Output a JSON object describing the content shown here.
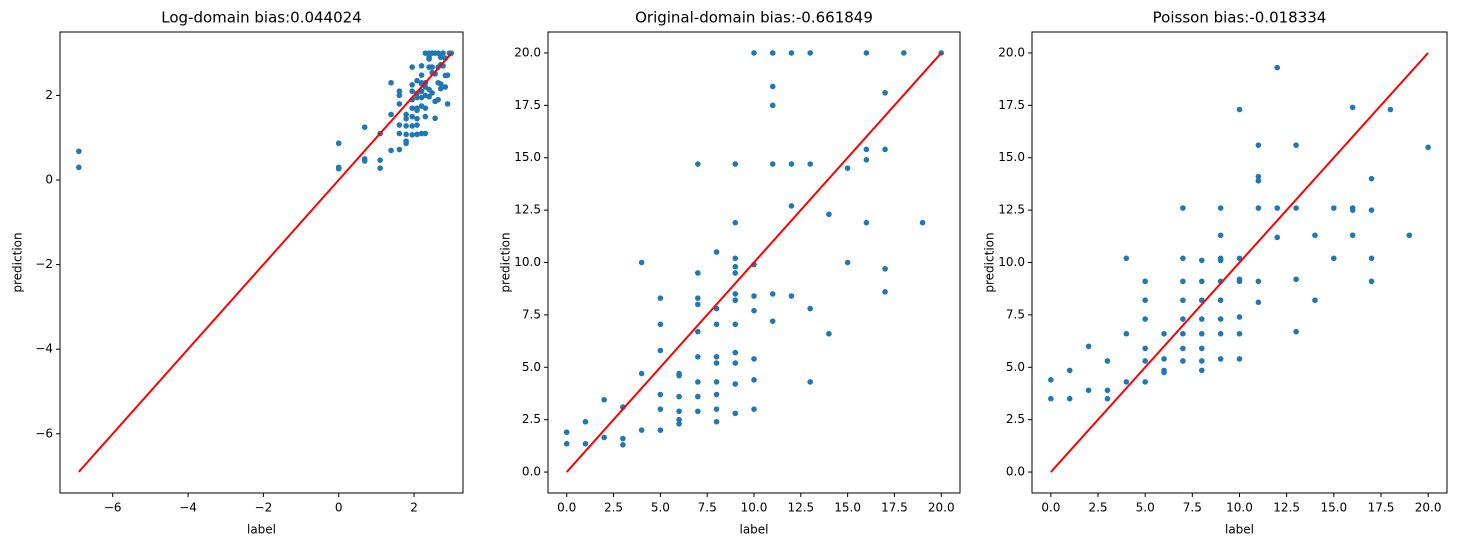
{
  "chart_data": [
    {
      "type": "scatter",
      "title": "Log-domain bias:0.044024",
      "xlabel": "label",
      "ylabel": "prediction",
      "xlim": [
        -7.4,
        3.3
      ],
      "ylim": [
        -7.4,
        3.5
      ],
      "xticks": [
        {
          "value": -6,
          "label": "−6"
        },
        {
          "value": -4,
          "label": "−4"
        },
        {
          "value": -2,
          "label": "−2"
        },
        0,
        2
      ],
      "yticks": [
        {
          "value": -6,
          "label": "−6"
        },
        {
          "value": -4,
          "label": "−4"
        },
        {
          "value": -2,
          "label": "−2"
        },
        0,
        2
      ],
      "series": [
        {
          "type": "scatter",
          "color": "#1f77b4",
          "x": [
            -6.9,
            -6.9,
            0,
            0,
            0,
            0.69,
            0.69,
            0.69,
            1.1,
            1.1,
            1.1,
            1.39,
            1.39,
            1.39,
            1.61,
            1.61,
            1.61,
            1.61,
            1.61,
            1.61,
            1.79,
            1.79,
            1.79,
            1.79,
            1.79,
            1.79,
            1.95,
            1.95,
            1.95,
            1.95,
            1.95,
            1.95,
            1.95,
            1.95,
            2.08,
            2.08,
            2.08,
            2.08,
            2.08,
            2.08,
            2.08,
            2.08,
            2.2,
            2.2,
            2.2,
            2.2,
            2.2,
            2.2,
            2.2,
            2.2,
            2.3,
            2.3,
            2.3,
            2.3,
            2.3,
            2.3,
            2.3,
            2.4,
            2.4,
            2.4,
            2.4,
            2.4,
            2.4,
            2.48,
            2.48,
            2.48,
            2.48,
            2.56,
            2.56,
            2.56,
            2.56,
            2.64,
            2.64,
            2.64,
            2.64,
            2.71,
            2.71,
            2.71,
            2.71,
            2.77,
            2.77,
            2.83,
            2.83,
            2.83,
            2.89,
            2.89,
            2.94,
            2.99
          ],
          "values": [
            0.68,
            0.3,
            0.87,
            0.3,
            0.27,
            1.25,
            0.5,
            0.45,
            1.1,
            0.47,
            0.28,
            2.3,
            1.55,
            0.7,
            2.1,
            2.0,
            1.8,
            1.3,
            1.1,
            0.72,
            1.55,
            1.45,
            1.28,
            1.08,
            0.92,
            0.87,
            2.67,
            2.25,
            2.1,
            1.9,
            1.7,
            1.5,
            1.28,
            1.07,
            2.35,
            2.05,
            1.95,
            1.7,
            1.65,
            1.45,
            1.3,
            1.08,
            2.7,
            2.48,
            2.3,
            2.28,
            2.1,
            1.95,
            1.75,
            1.1,
            3.0,
            2.3,
            2.2,
            2.0,
            1.7,
            1.5,
            1.1,
            3.0,
            2.9,
            2.86,
            2.67,
            2.14,
            1.97,
            3.0,
            2.67,
            2.54,
            2.06,
            3.0,
            2.51,
            1.86,
            1.46,
            3.0,
            2.67,
            2.3,
            1.9,
            2.9,
            2.73,
            2.27,
            2.16,
            3.0,
            2.7,
            2.88,
            2.47,
            2.2,
            2.48,
            1.8,
            3.0,
            3.0
          ]
        },
        {
          "type": "line",
          "color": "#ff0000",
          "x": [
            -6.9,
            2.996
          ],
          "values": [
            -6.9,
            2.996
          ]
        }
      ]
    },
    {
      "type": "scatter",
      "title": "Original-domain bias:-0.661849",
      "xlabel": "label",
      "ylabel": "prediction",
      "xlim": [
        -1,
        21
      ],
      "ylim": [
        -1,
        21
      ],
      "xticks": [
        {
          "value": 0,
          "label": "0.0"
        },
        2.5,
        {
          "value": 5,
          "label": "5.0"
        },
        7.5,
        {
          "value": 10,
          "label": "10.0"
        },
        12.5,
        {
          "value": 15,
          "label": "15.0"
        },
        17.5,
        {
          "value": 20,
          "label": "20.0"
        }
      ],
      "yticks": [
        {
          "value": 0,
          "label": "0.0"
        },
        2.5,
        {
          "value": 5,
          "label": "5.0"
        },
        7.5,
        {
          "value": 10,
          "label": "10.0"
        },
        12.5,
        {
          "value": 15,
          "label": "15.0"
        },
        17.5,
        {
          "value": 20,
          "label": "20.0"
        }
      ],
      "series": [
        {
          "type": "scatter",
          "color": "#1f77b4",
          "x": [
            0,
            0,
            1,
            1,
            2,
            2,
            3,
            3,
            3,
            4,
            4,
            4,
            5,
            5,
            5,
            5,
            5,
            5,
            6,
            6,
            6,
            6,
            6,
            6,
            7,
            7,
            7,
            7,
            7,
            7,
            7,
            7,
            7,
            8,
            8,
            8,
            8,
            8,
            8,
            8,
            8,
            8,
            9,
            9,
            9,
            9,
            9,
            9,
            9,
            9,
            9,
            9,
            9,
            9,
            10,
            10,
            10,
            10,
            10,
            10,
            10,
            11,
            11,
            11,
            11,
            11,
            11,
            12,
            12,
            12,
            12,
            13,
            13,
            13,
            13,
            14,
            14,
            15,
            15,
            16,
            16,
            16,
            16,
            17,
            17,
            17,
            17,
            18,
            19,
            20
          ],
          "values": [
            1.9,
            1.35,
            2.4,
            1.35,
            3.45,
            1.65,
            3.1,
            1.6,
            1.3,
            10,
            4.7,
            2,
            8.3,
            7.05,
            5.8,
            3.7,
            3,
            2,
            4.7,
            4.6,
            3.6,
            2.9,
            2.5,
            2.3,
            14.7,
            9.5,
            8.3,
            8,
            6.7,
            5.5,
            4.3,
            3.6,
            2.9,
            10.5,
            7.8,
            7.05,
            5.5,
            5.2,
            4.3,
            3.7,
            3,
            2.4,
            14.7,
            11.9,
            10.2,
            9.8,
            9.5,
            8.5,
            8.2,
            7.05,
            5.7,
            5.2,
            4.2,
            2.8,
            20,
            9.9,
            8.4,
            7.7,
            5.4,
            4.4,
            3,
            20,
            18.4,
            17.5,
            14.7,
            8.5,
            7.2,
            20,
            14.7,
            12.7,
            8.4,
            20,
            14.7,
            7.8,
            4.3,
            12.3,
            6.6,
            14.5,
            10,
            20,
            15.4,
            14.9,
            11.9,
            18.1,
            15.4,
            9.7,
            8.6,
            20,
            11.9,
            20
          ]
        },
        {
          "type": "line",
          "color": "#ff0000",
          "x": [
            0,
            20
          ],
          "values": [
            0,
            20
          ]
        }
      ]
    },
    {
      "type": "scatter",
      "title": "Poisson bias:-0.018334",
      "xlabel": "label",
      "ylabel": "prediction",
      "xlim": [
        -1,
        21
      ],
      "ylim": [
        -1,
        21
      ],
      "xticks": [
        {
          "value": 0,
          "label": "0.0"
        },
        2.5,
        {
          "value": 5,
          "label": "5.0"
        },
        7.5,
        {
          "value": 10,
          "label": "10.0"
        },
        12.5,
        {
          "value": 15,
          "label": "15.0"
        },
        17.5,
        {
          "value": 20,
          "label": "20.0"
        }
      ],
      "yticks": [
        {
          "value": 0,
          "label": "0.0"
        },
        2.5,
        {
          "value": 5,
          "label": "5.0"
        },
        7.5,
        {
          "value": 10,
          "label": "10.0"
        },
        12.5,
        {
          "value": 15,
          "label": "15.0"
        },
        17.5,
        {
          "value": 20,
          "label": "20.0"
        }
      ],
      "series": [
        {
          "type": "scatter",
          "color": "#1f77b4",
          "x": [
            0,
            0,
            1,
            1,
            2,
            2,
            3,
            3,
            3,
            4,
            4,
            4,
            5,
            5,
            5,
            5,
            5,
            5,
            6,
            6,
            6,
            6,
            7,
            7,
            7,
            7,
            7,
            7,
            7,
            7,
            8,
            8,
            8,
            8,
            8,
            8,
            8,
            8,
            9,
            9,
            9,
            9,
            9,
            9,
            9,
            9,
            9,
            10,
            10,
            10,
            10,
            10,
            10,
            10,
            11,
            11,
            11,
            11,
            11,
            11,
            12,
            12,
            12,
            13,
            13,
            13,
            13,
            14,
            14,
            15,
            15,
            16,
            16,
            16,
            16,
            17,
            17,
            17,
            17,
            18,
            19,
            20
          ],
          "values": [
            4.4,
            3.5,
            4.85,
            3.5,
            6,
            3.9,
            5.3,
            3.9,
            3.5,
            10.2,
            6.6,
            4.3,
            9.1,
            8.2,
            7.3,
            5.9,
            5.3,
            4.3,
            6.6,
            5.4,
            4.85,
            4.75,
            12.6,
            10.2,
            9.1,
            8.2,
            7.3,
            6.6,
            5.9,
            5.3,
            10.1,
            9.1,
            8.2,
            7.3,
            6.6,
            5.9,
            5.3,
            4.85,
            12.6,
            11.3,
            10.2,
            10.1,
            9.1,
            8.2,
            7.3,
            6.6,
            5.4,
            17.3,
            10.2,
            9.2,
            9.1,
            7.4,
            6.6,
            5.4,
            15.6,
            14.1,
            13.9,
            12.6,
            9.1,
            8.1,
            19.3,
            12.6,
            11.2,
            15.6,
            12.6,
            9.2,
            6.7,
            11.3,
            8.2,
            12.6,
            10.2,
            17.4,
            12.6,
            12.5,
            11.3,
            14,
            12.5,
            10.2,
            9.1,
            17.3,
            11.3,
            15.5
          ]
        },
        {
          "type": "line",
          "color": "#ff0000",
          "x": [
            0,
            20
          ],
          "values": [
            0,
            20
          ]
        }
      ]
    }
  ]
}
